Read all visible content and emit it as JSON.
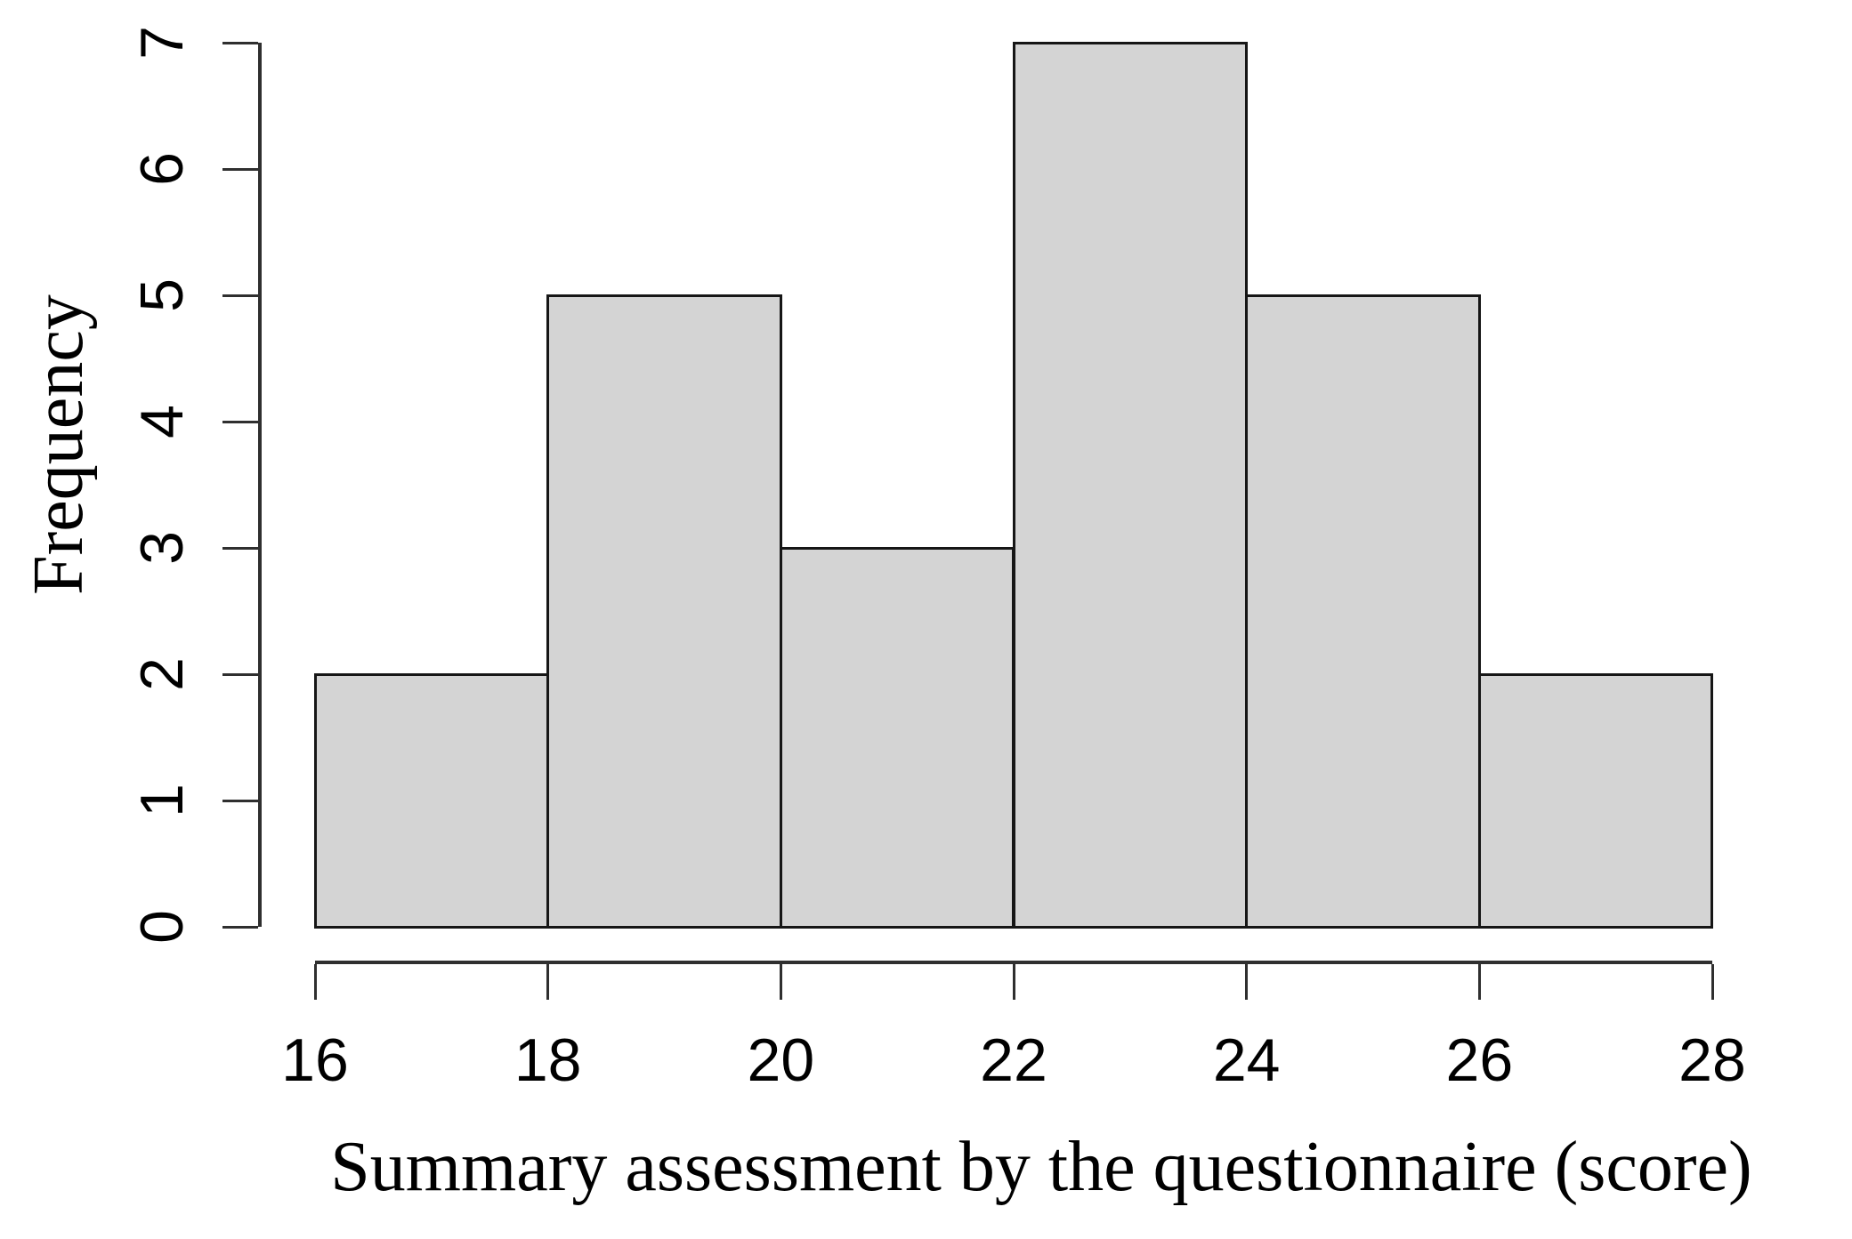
{
  "figure": {
    "background_color": "#ffffff"
  },
  "chart_data": {
    "type": "bar",
    "subtype": "histogram",
    "title": "",
    "xlabel": "Summary assessment by the questionnaire (score)",
    "ylabel": "Frequency",
    "bin_edges": [
      16,
      18,
      20,
      22,
      24,
      26,
      28
    ],
    "counts": [
      2,
      5,
      3,
      7,
      5,
      2
    ],
    "series": [
      {
        "name": "Frequency",
        "values": [
          2,
          5,
          3,
          7,
          5,
          2
        ]
      }
    ],
    "categories": [
      "16-18",
      "18-20",
      "20-22",
      "22-24",
      "24-26",
      "26-28"
    ],
    "x_tick_labels": [
      "16",
      "18",
      "20",
      "22",
      "24",
      "26",
      "28"
    ],
    "y_tick_labels": [
      "0",
      "1",
      "2",
      "3",
      "4",
      "5",
      "6",
      "7"
    ],
    "xlim": [
      16,
      28
    ],
    "ylim": [
      0,
      7
    ],
    "grid": false,
    "legend_position": "none",
    "bar_fill_color": "#d4d4d4",
    "bar_border_color": "#161616",
    "axis_color": "#2f2f2f",
    "text_color": "#000000"
  }
}
